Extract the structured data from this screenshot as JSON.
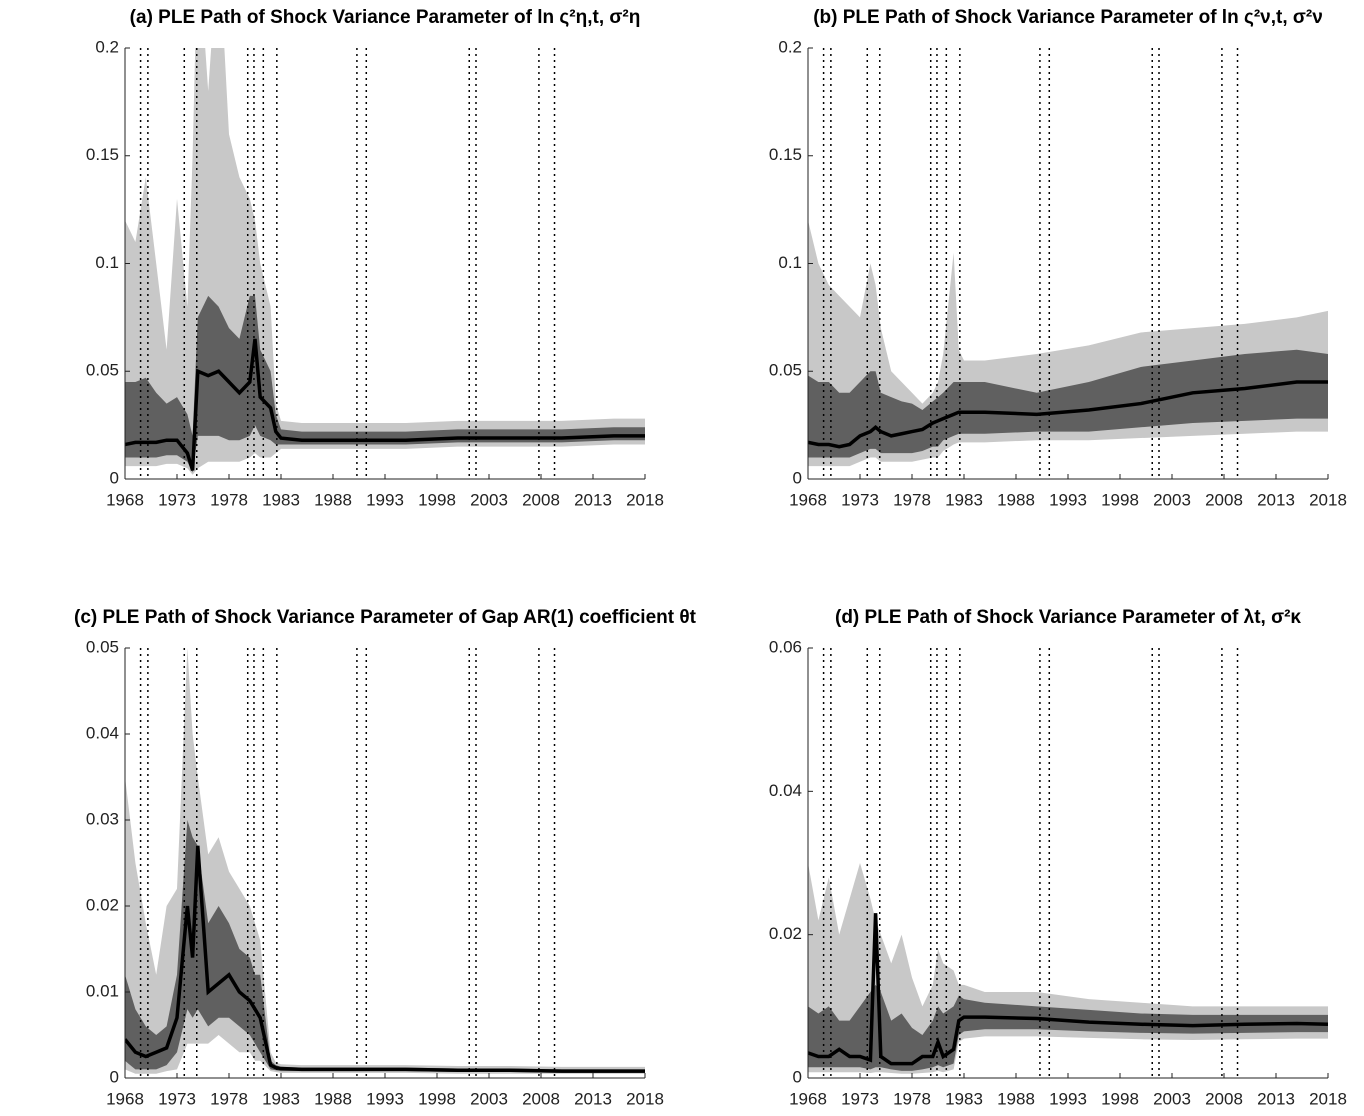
{
  "chart_data": [
    {
      "type": "band-line",
      "title": "(a) PLE Path of Shock Variance Parameter of ln ς²η,t, σ²η",
      "x": [
        1968,
        1969,
        1970,
        1971,
        1972,
        1973,
        1974,
        1974.5,
        1975,
        1976,
        1977,
        1978,
        1979,
        1980,
        1980.5,
        1981,
        1982,
        1982.5,
        1983,
        1985,
        1990,
        1995,
        2000,
        2005,
        2010,
        2015,
        2018
      ],
      "bands": [
        {
          "color": "#c8c8c8",
          "lower": [
            0.006,
            0.006,
            0.006,
            0.006,
            0.007,
            0.007,
            0.005,
            0.002,
            0.005,
            0.008,
            0.008,
            0.008,
            0.008,
            0.01,
            0.012,
            0.01,
            0.01,
            0.012,
            0.014,
            0.014,
            0.014,
            0.014,
            0.015,
            0.015,
            0.015,
            0.016,
            0.016
          ],
          "upper": [
            0.12,
            0.11,
            0.14,
            0.1,
            0.06,
            0.13,
            0.08,
            0.15,
            0.25,
            0.18,
            0.25,
            0.16,
            0.14,
            0.13,
            0.12,
            0.1,
            0.08,
            0.035,
            0.027,
            0.026,
            0.026,
            0.026,
            0.027,
            0.027,
            0.027,
            0.028,
            0.028
          ]
        },
        {
          "color": "#606060",
          "lower": [
            0.01,
            0.01,
            0.01,
            0.01,
            0.011,
            0.011,
            0.008,
            0.003,
            0.02,
            0.02,
            0.02,
            0.018,
            0.018,
            0.02,
            0.025,
            0.02,
            0.018,
            0.016,
            0.016,
            0.016,
            0.016,
            0.016,
            0.017,
            0.017,
            0.017,
            0.018,
            0.018
          ],
          "upper": [
            0.045,
            0.045,
            0.047,
            0.04,
            0.035,
            0.038,
            0.03,
            0.02,
            0.075,
            0.085,
            0.08,
            0.07,
            0.065,
            0.085,
            0.085,
            0.06,
            0.05,
            0.03,
            0.023,
            0.022,
            0.022,
            0.022,
            0.023,
            0.023,
            0.023,
            0.024,
            0.024
          ]
        }
      ],
      "line": {
        "color": "#000000",
        "values": [
          0.016,
          0.017,
          0.017,
          0.017,
          0.018,
          0.018,
          0.012,
          0.004,
          0.05,
          0.048,
          0.05,
          0.045,
          0.04,
          0.045,
          0.065,
          0.038,
          0.033,
          0.022,
          0.019,
          0.018,
          0.018,
          0.018,
          0.019,
          0.019,
          0.019,
          0.02,
          0.02
        ]
      },
      "vlines": [
        1969.5,
        1970.2,
        1973.7,
        1974.9,
        1979.8,
        1980.4,
        1981.3,
        1982.6,
        1990.3,
        1991.2,
        2001.1,
        2001.75,
        2007.8,
        2009.3
      ],
      "xlim": [
        1968,
        2018
      ],
      "xticks": [
        1968,
        1973,
        1978,
        1983,
        1988,
        1993,
        1998,
        2003,
        2008,
        2013,
        2018
      ],
      "ylim": [
        0,
        0.2
      ],
      "yticks": [
        0,
        0.05,
        0.1,
        0.15,
        0.2
      ]
    },
    {
      "type": "band-line",
      "title": "(b) PLE Path of Shock Variance Parameter of ln ς²ν,t, σ²ν",
      "x": [
        1968,
        1969,
        1970,
        1971,
        1972,
        1973,
        1974,
        1974.5,
        1975,
        1976,
        1977,
        1978,
        1979,
        1980,
        1980.5,
        1981,
        1982,
        1982.5,
        1983,
        1985,
        1990,
        1995,
        2000,
        2005,
        2010,
        2015,
        2018
      ],
      "bands": [
        {
          "color": "#c8c8c8",
          "lower": [
            0.006,
            0.006,
            0.006,
            0.006,
            0.006,
            0.008,
            0.01,
            0.01,
            0.008,
            0.008,
            0.008,
            0.008,
            0.009,
            0.01,
            0.01,
            0.013,
            0.016,
            0.017,
            0.017,
            0.017,
            0.018,
            0.018,
            0.019,
            0.02,
            0.021,
            0.022,
            0.022
          ],
          "upper": [
            0.12,
            0.1,
            0.09,
            0.085,
            0.08,
            0.075,
            0.1,
            0.09,
            0.07,
            0.05,
            0.045,
            0.04,
            0.035,
            0.04,
            0.045,
            0.058,
            0.105,
            0.06,
            0.055,
            0.055,
            0.058,
            0.062,
            0.068,
            0.07,
            0.072,
            0.075,
            0.078
          ]
        },
        {
          "color": "#606060",
          "lower": [
            0.01,
            0.01,
            0.01,
            0.01,
            0.01,
            0.012,
            0.014,
            0.014,
            0.012,
            0.012,
            0.012,
            0.012,
            0.013,
            0.015,
            0.015,
            0.018,
            0.02,
            0.021,
            0.021,
            0.021,
            0.022,
            0.022,
            0.024,
            0.026,
            0.027,
            0.028,
            0.028
          ],
          "upper": [
            0.048,
            0.045,
            0.045,
            0.04,
            0.04,
            0.045,
            0.05,
            0.05,
            0.04,
            0.038,
            0.036,
            0.035,
            0.032,
            0.036,
            0.038,
            0.04,
            0.045,
            0.045,
            0.045,
            0.045,
            0.04,
            0.045,
            0.052,
            0.055,
            0.058,
            0.06,
            0.058
          ]
        }
      ],
      "line": {
        "color": "#000000",
        "values": [
          0.017,
          0.016,
          0.016,
          0.015,
          0.016,
          0.02,
          0.022,
          0.024,
          0.022,
          0.02,
          0.021,
          0.022,
          0.023,
          0.026,
          0.027,
          0.028,
          0.03,
          0.031,
          0.031,
          0.031,
          0.03,
          0.032,
          0.035,
          0.04,
          0.042,
          0.045,
          0.045
        ]
      },
      "vlines": [
        1969.5,
        1970.2,
        1973.7,
        1974.9,
        1979.8,
        1980.4,
        1981.3,
        1982.6,
        1990.3,
        1991.2,
        2001.1,
        2001.75,
        2007.8,
        2009.3
      ],
      "xlim": [
        1968,
        2018
      ],
      "xticks": [
        1968,
        1973,
        1978,
        1983,
        1988,
        1993,
        1998,
        2003,
        2008,
        2013,
        2018
      ],
      "ylim": [
        0,
        0.2
      ],
      "yticks": [
        0,
        0.05,
        0.1,
        0.15,
        0.2
      ]
    },
    {
      "type": "band-line",
      "title": "(c) PLE Path of Shock Variance Parameter of Gap AR(1) coefficient θt",
      "x": [
        1968,
        1969,
        1970,
        1971,
        1972,
        1973,
        1974,
        1974.5,
        1975,
        1976,
        1977,
        1978,
        1979,
        1980,
        1980.5,
        1981,
        1982,
        1982.5,
        1983,
        1985,
        1990,
        1995,
        2000,
        2005,
        2010,
        2015,
        2018
      ],
      "bands": [
        {
          "color": "#c8c8c8",
          "lower": [
            0.001,
            0.0005,
            0.0005,
            0.0005,
            0.0008,
            0.001,
            0.004,
            0.004,
            0.004,
            0.004,
            0.005,
            0.004,
            0.003,
            0.003,
            0.002,
            0.002,
            0.0008,
            0.0007,
            0.0006,
            0.0006,
            0.0006,
            0.0006,
            0.0005,
            0.0005,
            0.0005,
            0.0005,
            0.0005
          ],
          "upper": [
            0.035,
            0.025,
            0.018,
            0.012,
            0.02,
            0.022,
            0.05,
            0.04,
            0.035,
            0.026,
            0.028,
            0.024,
            0.022,
            0.02,
            0.018,
            0.016,
            0.003,
            0.0018,
            0.0016,
            0.0015,
            0.0015,
            0.0015,
            0.0014,
            0.0014,
            0.0013,
            0.0013,
            0.0013
          ]
        },
        {
          "color": "#606060",
          "lower": [
            0.002,
            0.001,
            0.001,
            0.001,
            0.0015,
            0.003,
            0.008,
            0.007,
            0.008,
            0.006,
            0.007,
            0.007,
            0.006,
            0.005,
            0.004,
            0.003,
            0.001,
            0.0009,
            0.0008,
            0.0008,
            0.0008,
            0.0008,
            0.0007,
            0.0007,
            0.0006,
            0.0006,
            0.0006
          ],
          "upper": [
            0.012,
            0.008,
            0.006,
            0.005,
            0.006,
            0.012,
            0.03,
            0.028,
            0.027,
            0.018,
            0.02,
            0.018,
            0.015,
            0.014,
            0.012,
            0.012,
            0.002,
            0.0015,
            0.0013,
            0.0012,
            0.0012,
            0.0012,
            0.0011,
            0.0011,
            0.001,
            0.001,
            0.001
          ]
        }
      ],
      "line": {
        "color": "#000000",
        "values": [
          0.0045,
          0.003,
          0.0025,
          0.003,
          0.0035,
          0.007,
          0.02,
          0.014,
          0.027,
          0.01,
          0.011,
          0.012,
          0.01,
          0.009,
          0.008,
          0.007,
          0.0015,
          0.0012,
          0.0011,
          0.001,
          0.001,
          0.001,
          0.0009,
          0.0009,
          0.0008,
          0.0008,
          0.0008
        ]
      },
      "vlines": [
        1969.5,
        1970.2,
        1973.7,
        1974.9,
        1979.8,
        1980.4,
        1981.3,
        1982.6,
        1990.3,
        1991.2,
        2001.1,
        2001.75,
        2007.8,
        2009.3
      ],
      "xlim": [
        1968,
        2018
      ],
      "xticks": [
        1968,
        1973,
        1978,
        1983,
        1988,
        1993,
        1998,
        2003,
        2008,
        2013,
        2018
      ],
      "ylim": [
        0,
        0.05
      ],
      "yticks": [
        0,
        0.01,
        0.02,
        0.03,
        0.04,
        0.05
      ]
    },
    {
      "type": "band-line",
      "title": "(d) PLE Path of Shock Variance Parameter of λt, σ²κ",
      "x": [
        1968,
        1969,
        1970,
        1971,
        1972,
        1973,
        1974,
        1974.5,
        1975,
        1976,
        1977,
        1978,
        1979,
        1980,
        1980.5,
        1981,
        1982,
        1982.5,
        1983,
        1985,
        1990,
        1995,
        2000,
        2005,
        2010,
        2015,
        2018
      ],
      "bands": [
        {
          "color": "#c8c8c8",
          "lower": [
            0.0008,
            0.0008,
            0.0008,
            0.0008,
            0.0008,
            0.0008,
            0.0007,
            0.0008,
            0.0008,
            0.0007,
            0.0006,
            0.0006,
            0.0007,
            0.0008,
            0.001,
            0.0008,
            0.0012,
            0.005,
            0.0055,
            0.0058,
            0.0058,
            0.0056,
            0.0054,
            0.0053,
            0.0054,
            0.0055,
            0.0055
          ],
          "upper": [
            0.03,
            0.022,
            0.028,
            0.02,
            0.025,
            0.03,
            0.025,
            0.022,
            0.02,
            0.016,
            0.02,
            0.014,
            0.01,
            0.013,
            0.018,
            0.016,
            0.015,
            0.013,
            0.013,
            0.012,
            0.012,
            0.011,
            0.0105,
            0.01,
            0.01,
            0.01,
            0.01
          ]
        },
        {
          "color": "#606060",
          "lower": [
            0.0015,
            0.0015,
            0.0015,
            0.0015,
            0.0015,
            0.0015,
            0.0012,
            0.0015,
            0.0015,
            0.0012,
            0.001,
            0.001,
            0.0012,
            0.0015,
            0.0018,
            0.0015,
            0.002,
            0.006,
            0.0065,
            0.0068,
            0.0068,
            0.0065,
            0.0063,
            0.0062,
            0.0063,
            0.0064,
            0.0064
          ],
          "upper": [
            0.01,
            0.009,
            0.01,
            0.008,
            0.008,
            0.01,
            0.012,
            0.013,
            0.012,
            0.008,
            0.009,
            0.007,
            0.006,
            0.008,
            0.01,
            0.009,
            0.01,
            0.0115,
            0.011,
            0.0105,
            0.01,
            0.0095,
            0.009,
            0.0088,
            0.0088,
            0.0088,
            0.0088
          ]
        }
      ],
      "line": {
        "color": "#000000",
        "values": [
          0.0035,
          0.003,
          0.003,
          0.004,
          0.003,
          0.003,
          0.0025,
          0.023,
          0.003,
          0.002,
          0.002,
          0.002,
          0.003,
          0.003,
          0.005,
          0.003,
          0.004,
          0.008,
          0.0085,
          0.0085,
          0.0083,
          0.0078,
          0.0075,
          0.0073,
          0.0075,
          0.0076,
          0.0075
        ]
      },
      "vlines": [
        1969.5,
        1970.2,
        1973.7,
        1974.9,
        1979.8,
        1980.4,
        1981.3,
        1982.6,
        1990.3,
        1991.2,
        2001.1,
        2001.75,
        2007.8,
        2009.3
      ],
      "xlim": [
        1968,
        2018
      ],
      "xticks": [
        1968,
        1973,
        1978,
        1983,
        1988,
        1993,
        1998,
        2003,
        2008,
        2013,
        2018
      ],
      "ylim": [
        0,
        0.06
      ],
      "yticks": [
        0,
        0.02,
        0.04,
        0.06
      ]
    }
  ]
}
